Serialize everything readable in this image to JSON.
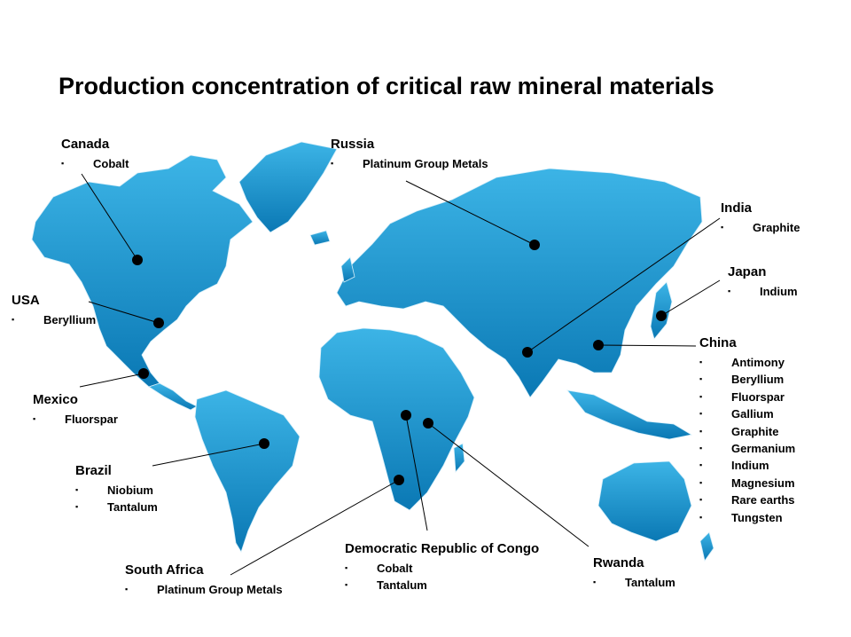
{
  "title": "Production concentration of critical raw mineral materials",
  "colors": {
    "land": "#1e96d2",
    "land_dark": "#0a78b4",
    "border": "#cfe9f7",
    "marker": "#000000",
    "leader": "#000000"
  },
  "countries": [
    {
      "id": "canada",
      "name": "Canada",
      "materials": [
        "Cobalt"
      ]
    },
    {
      "id": "russia",
      "name": "Russia",
      "materials": [
        "Platinum Group Metals"
      ]
    },
    {
      "id": "india",
      "name": "India",
      "materials": [
        "Graphite"
      ]
    },
    {
      "id": "japan",
      "name": "Japan",
      "materials": [
        "Indium"
      ]
    },
    {
      "id": "usa",
      "name": "USA",
      "materials": [
        "Beryllium"
      ]
    },
    {
      "id": "china",
      "name": "China",
      "materials": [
        "Antimony",
        "Beryllium",
        "Fluorspar",
        "Gallium",
        "Graphite",
        "Germanium",
        "Indium",
        "Magnesium",
        "Rare earths",
        "Tungsten"
      ]
    },
    {
      "id": "mexico",
      "name": "Mexico",
      "materials": [
        "Fluorspar"
      ]
    },
    {
      "id": "brazil",
      "name": "Brazil",
      "materials": [
        "Niobium",
        "Tantalum"
      ]
    },
    {
      "id": "south-africa",
      "name": "South Africa",
      "materials": [
        "Platinum Group Metals"
      ]
    },
    {
      "id": "drc",
      "name": "Democratic Republic of Congo",
      "materials": [
        "Cobalt",
        "Tantalum"
      ]
    },
    {
      "id": "rwanda",
      "name": "Rwanda",
      "materials": [
        "Tantalum"
      ]
    }
  ]
}
